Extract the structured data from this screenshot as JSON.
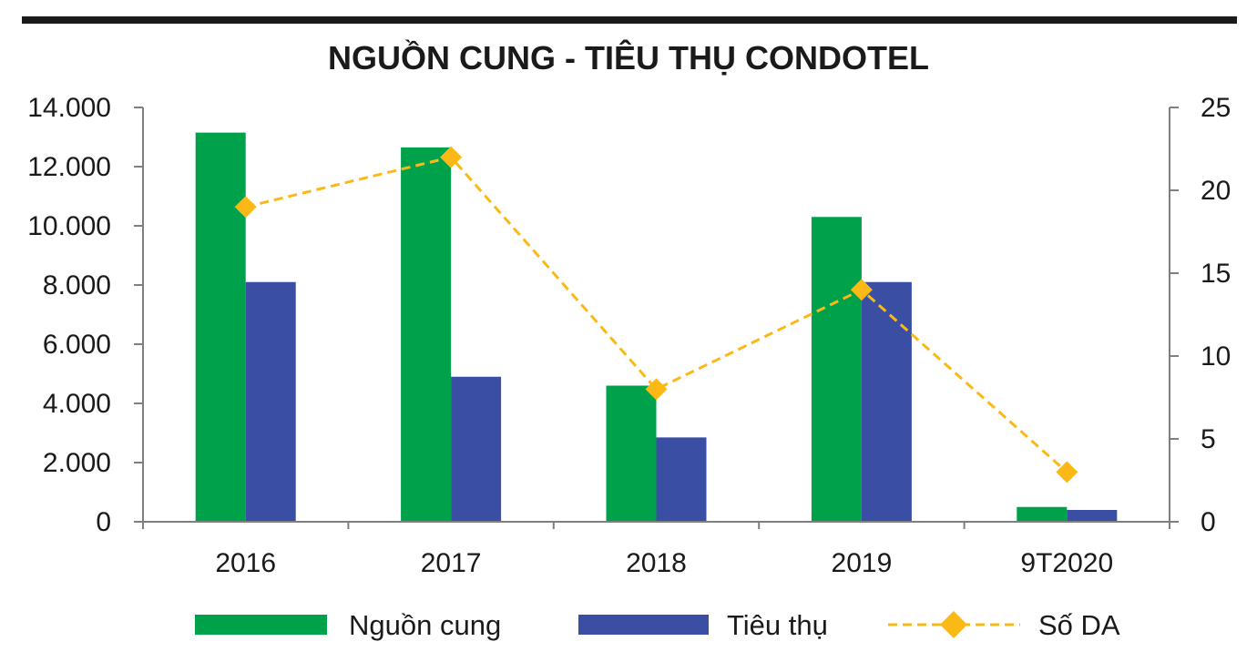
{
  "chart_data": {
    "type": "bar",
    "title": "NGUỒN CUNG - TIÊU THỤ CONDOTEL",
    "categories": [
      "2016",
      "2017",
      "2018",
      "2019",
      "9T2020"
    ],
    "series": [
      {
        "name": "Nguồn cung",
        "kind": "bar",
        "axis": "left",
        "color": "#00a14b",
        "values": [
          13150,
          12650,
          4600,
          10300,
          500
        ]
      },
      {
        "name": "Tiêu thụ",
        "kind": "bar",
        "axis": "left",
        "color": "#3a4fa3",
        "values": [
          8100,
          4900,
          2850,
          8100,
          400
        ]
      },
      {
        "name": "Số DA",
        "kind": "line",
        "axis": "right",
        "color": "#fbb917",
        "style": "dashed",
        "marker": "diamond",
        "values": [
          19,
          22,
          8,
          14,
          3
        ]
      }
    ],
    "y_left": {
      "lim": [
        0,
        14000
      ],
      "ticks": [
        0,
        2000,
        4000,
        6000,
        8000,
        10000,
        12000,
        14000
      ],
      "tick_labels": [
        "0",
        "2.000",
        "4.000",
        "6.000",
        "8.000",
        "10.000",
        "12.000",
        "14.000"
      ]
    },
    "y_right": {
      "lim": [
        0,
        25
      ],
      "ticks": [
        0,
        5,
        10,
        15,
        20,
        25
      ],
      "tick_labels": [
        "0",
        "5",
        "10",
        "15",
        "20",
        "25"
      ]
    },
    "grid": false,
    "legend_position": "bottom",
    "top_rule_color": "#1a1a1a",
    "axis_color": "#7f7f7f"
  }
}
